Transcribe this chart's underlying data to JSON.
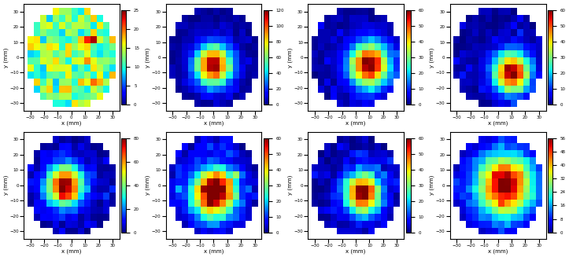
{
  "nrows": 2,
  "ncols": 4,
  "figsize": [
    7.23,
    3.27
  ],
  "dpi": 100,
  "xlabel": "x (mm)",
  "ylabel": "y (mm)",
  "grid_n": 14,
  "clim_max": [
    25,
    120,
    60,
    60,
    80,
    60,
    60,
    56
  ],
  "clim_min": [
    0,
    0,
    0,
    0,
    0,
    0,
    0,
    0
  ],
  "colorbar_ticks": [
    [
      0,
      5,
      10,
      15,
      20,
      25
    ],
    [
      0,
      20,
      40,
      60,
      80,
      100,
      120
    ],
    [
      0,
      10,
      20,
      30,
      40,
      50,
      60
    ],
    [
      0,
      10,
      20,
      30,
      40,
      50,
      60
    ],
    [
      0,
      20,
      40,
      60,
      80
    ],
    [
      0,
      10,
      20,
      30,
      40,
      50,
      60
    ],
    [
      0,
      10,
      20,
      30,
      40,
      50,
      60
    ],
    [
      0,
      8,
      16,
      24,
      32,
      40,
      48,
      56
    ]
  ],
  "xticks": [
    -30,
    -20,
    -10,
    0,
    10,
    20,
    30
  ],
  "yticks": [
    -30,
    -20,
    -10,
    0,
    10,
    20,
    30
  ],
  "tick_fontsize": 4,
  "label_fontsize": 5,
  "colorbar_fontsize": 4
}
